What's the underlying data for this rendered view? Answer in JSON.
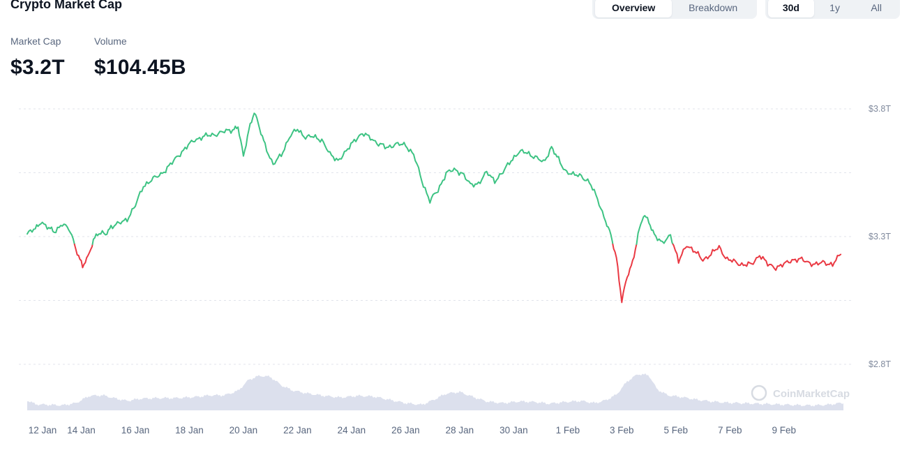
{
  "header": {
    "title": "Crypto Market Cap",
    "view_tabs": [
      {
        "label": "Overview",
        "active": true
      },
      {
        "label": "Breakdown",
        "active": false
      }
    ],
    "range_tabs": [
      {
        "label": "30d",
        "active": true
      },
      {
        "label": "1y",
        "active": false
      },
      {
        "label": "All",
        "active": false
      }
    ]
  },
  "stats": {
    "market_cap_label": "Market Cap",
    "market_cap_value": "$3.2T",
    "volume_label": "Volume",
    "volume_value": "$104.45B"
  },
  "watermark": "CoinMarketCap",
  "colors": {
    "up": "#3dc383",
    "down": "#ea3943",
    "volume_fill": "#d6dbea",
    "grid": "#e0e3eb"
  },
  "chart_data": {
    "type": "line",
    "ylabel": "",
    "xlabel": "",
    "baseline": 3.27,
    "yticks": [
      {
        "value": 2.8,
        "label": "$2.8T"
      },
      {
        "value": 3.3,
        "label": "$3.3T"
      },
      {
        "value": 3.8,
        "label": "$3.8T"
      }
    ],
    "grid_values": [
      2.8,
      3.05,
      3.3,
      3.55,
      3.8
    ],
    "ylim": [
      2.8,
      3.8
    ],
    "xlim": [
      0,
      30.2
    ],
    "xticks": [
      {
        "x": 0,
        "label": "12 Jan"
      },
      {
        "x": 2,
        "label": "14 Jan"
      },
      {
        "x": 4,
        "label": "16 Jan"
      },
      {
        "x": 6,
        "label": "18 Jan"
      },
      {
        "x": 8,
        "label": "20 Jan"
      },
      {
        "x": 10,
        "label": "22 Jan"
      },
      {
        "x": 12,
        "label": "24 Jan"
      },
      {
        "x": 14,
        "label": "26 Jan"
      },
      {
        "x": 16,
        "label": "28 Jan"
      },
      {
        "x": 18,
        "label": "30 Jan"
      },
      {
        "x": 20,
        "label": "1 Feb"
      },
      {
        "x": 22,
        "label": "3 Feb"
      },
      {
        "x": 24,
        "label": "5 Feb"
      },
      {
        "x": 26,
        "label": "7 Feb"
      },
      {
        "x": 28,
        "label": "9 Feb"
      }
    ],
    "series": [
      {
        "values": [
          [
            0.0,
            3.31
          ],
          [
            0.3,
            3.33
          ],
          [
            0.5,
            3.36
          ],
          [
            0.8,
            3.33
          ],
          [
            1.0,
            3.32
          ],
          [
            1.3,
            3.35
          ],
          [
            1.6,
            3.32
          ],
          [
            1.85,
            3.24
          ],
          [
            2.05,
            3.18
          ],
          [
            2.25,
            3.22
          ],
          [
            2.45,
            3.29
          ],
          [
            2.6,
            3.31
          ],
          [
            2.9,
            3.31
          ],
          [
            3.1,
            3.34
          ],
          [
            3.4,
            3.35
          ],
          [
            3.7,
            3.37
          ],
          [
            4.0,
            3.42
          ],
          [
            4.3,
            3.5
          ],
          [
            4.6,
            3.52
          ],
          [
            5.0,
            3.55
          ],
          [
            5.3,
            3.58
          ],
          [
            5.6,
            3.62
          ],
          [
            5.9,
            3.65
          ],
          [
            6.2,
            3.68
          ],
          [
            6.5,
            3.69
          ],
          [
            6.9,
            3.7
          ],
          [
            7.3,
            3.71
          ],
          [
            7.6,
            3.72
          ],
          [
            7.8,
            3.73
          ],
          [
            8.0,
            3.61
          ],
          [
            8.2,
            3.72
          ],
          [
            8.4,
            3.79
          ],
          [
            8.6,
            3.72
          ],
          [
            8.8,
            3.66
          ],
          [
            9.1,
            3.58
          ],
          [
            9.4,
            3.62
          ],
          [
            9.7,
            3.69
          ],
          [
            10.0,
            3.72
          ],
          [
            10.3,
            3.69
          ],
          [
            10.6,
            3.69
          ],
          [
            10.9,
            3.68
          ],
          [
            11.2,
            3.62
          ],
          [
            11.5,
            3.6
          ],
          [
            11.8,
            3.63
          ],
          [
            12.1,
            3.68
          ],
          [
            12.4,
            3.7
          ],
          [
            12.7,
            3.69
          ],
          [
            13.0,
            3.66
          ],
          [
            13.3,
            3.65
          ],
          [
            13.6,
            3.66
          ],
          [
            14.0,
            3.66
          ],
          [
            14.3,
            3.62
          ],
          [
            14.6,
            3.52
          ],
          [
            14.9,
            3.44
          ],
          [
            15.2,
            3.48
          ],
          [
            15.5,
            3.55
          ],
          [
            15.8,
            3.56
          ],
          [
            16.1,
            3.55
          ],
          [
            16.4,
            3.5
          ],
          [
            16.7,
            3.51
          ],
          [
            17.0,
            3.55
          ],
          [
            17.3,
            3.52
          ],
          [
            17.6,
            3.55
          ],
          [
            17.9,
            3.6
          ],
          [
            18.2,
            3.63
          ],
          [
            18.5,
            3.63
          ],
          [
            18.8,
            3.61
          ],
          [
            19.1,
            3.59
          ],
          [
            19.4,
            3.65
          ],
          [
            19.6,
            3.61
          ],
          [
            19.9,
            3.56
          ],
          [
            20.2,
            3.54
          ],
          [
            20.5,
            3.54
          ],
          [
            20.8,
            3.51
          ],
          [
            21.1,
            3.45
          ],
          [
            21.4,
            3.36
          ],
          [
            21.6,
            3.3
          ],
          [
            21.8,
            3.22
          ],
          [
            22.0,
            3.05
          ],
          [
            22.2,
            3.14
          ],
          [
            22.4,
            3.2
          ],
          [
            22.6,
            3.31
          ],
          [
            22.8,
            3.38
          ],
          [
            23.0,
            3.36
          ],
          [
            23.2,
            3.31
          ],
          [
            23.5,
            3.27
          ],
          [
            23.8,
            3.31
          ],
          [
            24.1,
            3.2
          ],
          [
            24.4,
            3.27
          ],
          [
            24.7,
            3.24
          ],
          [
            25.0,
            3.21
          ],
          [
            25.3,
            3.23
          ],
          [
            25.6,
            3.26
          ],
          [
            25.9,
            3.21
          ],
          [
            26.2,
            3.2
          ],
          [
            26.5,
            3.19
          ],
          [
            26.8,
            3.19
          ],
          [
            27.1,
            3.23
          ],
          [
            27.4,
            3.19
          ],
          [
            27.7,
            3.18
          ],
          [
            28.0,
            3.19
          ],
          [
            28.3,
            3.21
          ],
          [
            28.6,
            3.21
          ],
          [
            28.9,
            3.2
          ],
          [
            29.2,
            3.19
          ],
          [
            29.5,
            3.2
          ],
          [
            29.8,
            3.19
          ],
          [
            30.1,
            3.23
          ]
        ]
      }
    ],
    "volume_profile": [
      [
        0.0,
        0.18
      ],
      [
        0.3,
        0.11
      ],
      [
        0.8,
        0.1
      ],
      [
        1.3,
        0.09
      ],
      [
        1.8,
        0.13
      ],
      [
        2.3,
        0.26
      ],
      [
        2.8,
        0.27
      ],
      [
        3.2,
        0.22
      ],
      [
        3.7,
        0.17
      ],
      [
        4.2,
        0.21
      ],
      [
        4.8,
        0.22
      ],
      [
        5.5,
        0.22
      ],
      [
        6.2,
        0.24
      ],
      [
        6.8,
        0.27
      ],
      [
        7.3,
        0.27
      ],
      [
        7.8,
        0.35
      ],
      [
        8.2,
        0.55
      ],
      [
        8.6,
        0.62
      ],
      [
        9.0,
        0.6
      ],
      [
        9.4,
        0.45
      ],
      [
        9.8,
        0.36
      ],
      [
        10.4,
        0.3
      ],
      [
        11.0,
        0.26
      ],
      [
        11.6,
        0.23
      ],
      [
        12.2,
        0.26
      ],
      [
        12.8,
        0.25
      ],
      [
        13.4,
        0.19
      ],
      [
        14.0,
        0.13
      ],
      [
        14.6,
        0.1
      ],
      [
        15.0,
        0.18
      ],
      [
        15.5,
        0.3
      ],
      [
        16.0,
        0.33
      ],
      [
        16.5,
        0.24
      ],
      [
        17.0,
        0.16
      ],
      [
        17.6,
        0.13
      ],
      [
        18.2,
        0.16
      ],
      [
        18.8,
        0.15
      ],
      [
        19.3,
        0.12
      ],
      [
        19.9,
        0.15
      ],
      [
        20.5,
        0.17
      ],
      [
        21.0,
        0.13
      ],
      [
        21.4,
        0.18
      ],
      [
        21.8,
        0.28
      ],
      [
        22.2,
        0.52
      ],
      [
        22.6,
        0.65
      ],
      [
        23.0,
        0.63
      ],
      [
        23.3,
        0.38
      ],
      [
        23.7,
        0.27
      ],
      [
        24.2,
        0.24
      ],
      [
        24.8,
        0.19
      ],
      [
        25.3,
        0.16
      ],
      [
        25.8,
        0.14
      ],
      [
        26.4,
        0.13
      ],
      [
        27.0,
        0.12
      ],
      [
        27.6,
        0.11
      ],
      [
        28.2,
        0.1
      ],
      [
        28.7,
        0.09
      ],
      [
        29.2,
        0.09
      ],
      [
        29.6,
        0.1
      ],
      [
        30.1,
        0.13
      ]
    ]
  }
}
